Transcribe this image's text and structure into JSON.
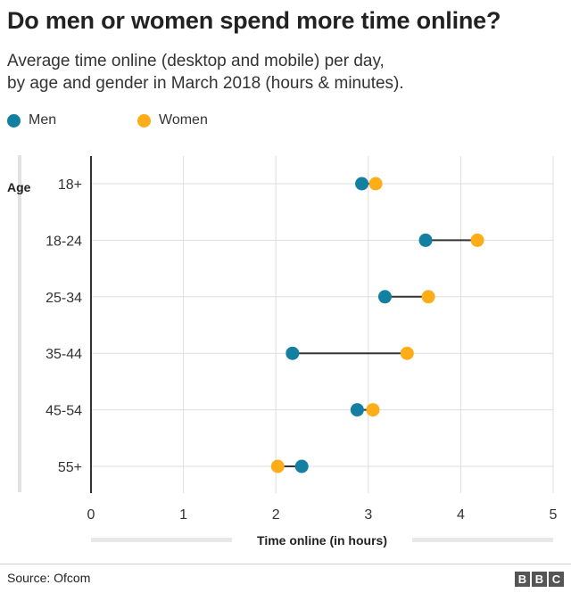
{
  "header": {
    "title": "Do men or women spend more time online?",
    "subtitle_line1": "Average time online (desktop and mobile) per day,",
    "subtitle_line2": "by age and gender in March 2018 (hours & minutes)."
  },
  "colors": {
    "men": "#1380a1",
    "women": "#fcad18",
    "grid": "#dddddd",
    "connector": "#333333"
  },
  "chart_data": {
    "type": "scatter",
    "subtype": "dumbbell",
    "ylabel": "Age",
    "xlabel": "Time online (in hours)",
    "xlim": [
      0,
      5
    ],
    "xticks": [
      "0",
      "1",
      "2",
      "3",
      "4",
      "5"
    ],
    "categories": [
      "18+",
      "18-24",
      "25-34",
      "35-44",
      "45-54",
      "55+"
    ],
    "series": [
      {
        "name": "Men",
        "color": "#1380a1",
        "values": [
          2.93,
          3.62,
          3.18,
          2.18,
          2.88,
          2.28
        ]
      },
      {
        "name": "Women",
        "color": "#fcad18",
        "values": [
          3.08,
          4.18,
          3.65,
          3.42,
          3.05,
          2.02
        ]
      }
    ],
    "legend_position": "top-left",
    "grid": true
  },
  "footer": {
    "source": "Source: Ofcom",
    "logo_letters": [
      "B",
      "B",
      "C"
    ]
  }
}
